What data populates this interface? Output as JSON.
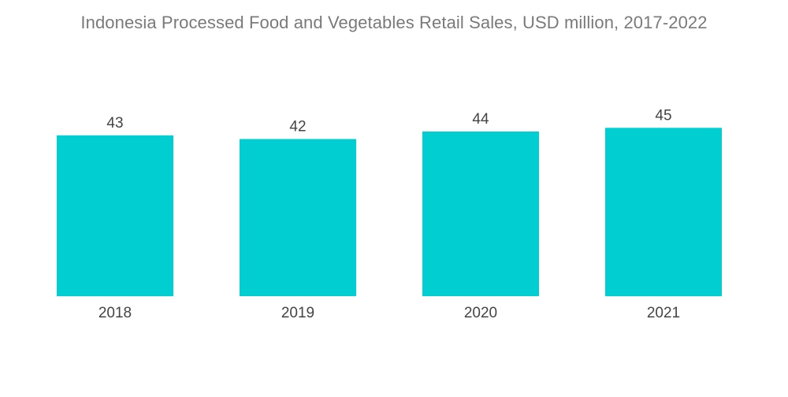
{
  "chart_data": {
    "type": "bar",
    "title": "Indonesia Processed Food and Vegetables Retail Sales, USD million, 2017-2022",
    "categories": [
      "2018",
      "2019",
      "2020",
      "2021"
    ],
    "values": [
      43,
      42,
      44,
      45
    ],
    "value_labels": [
      "43",
      "42",
      "44",
      "45"
    ],
    "xlabel": "",
    "ylabel": "",
    "ylim": [
      0,
      45
    ],
    "grid": false,
    "legend": "none",
    "bar_color": "#00CED1"
  }
}
